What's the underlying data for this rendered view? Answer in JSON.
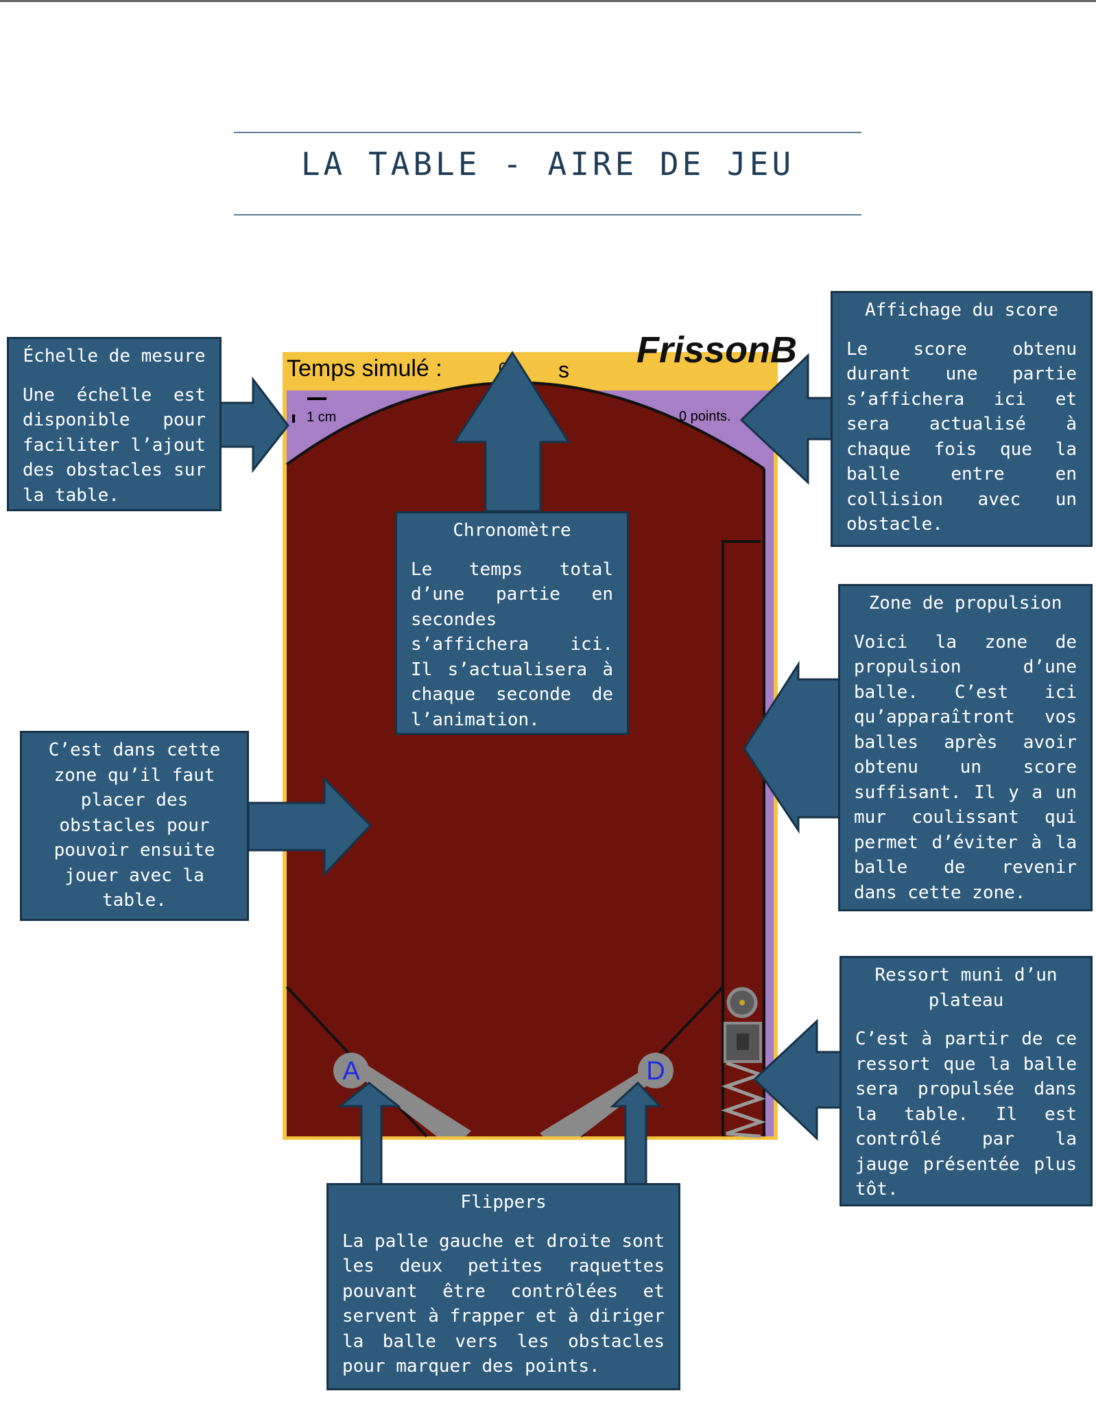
{
  "title": "LA TABLE - AIRE DE JEU",
  "game": {
    "time_label": "Temps simulé :",
    "time_value": "0.0",
    "time_unit": "s",
    "logo_text": "FrissonB",
    "scale_label": "1 cm",
    "score_label": "0 points.",
    "flipper_left_key": "A",
    "flipper_right_key": "D"
  },
  "annotations": {
    "scale": {
      "title": "Échelle de mesure",
      "body": "Une échelle est disponible pour faciliter l’ajout des obstacles sur la table."
    },
    "chrono": {
      "title": "Chronomètre",
      "body": "Le temps total d’une partie en secondes s’affichera ici. Il s’actualisera à chaque seconde de l’animation."
    },
    "score": {
      "title": "Affichage du score",
      "body": "Le score obtenu durant une partie s’affichera ici et sera actualisé à chaque fois que la balle entre en collision avec un obstacle."
    },
    "propulsion": {
      "title": "Zone de propulsion",
      "body": "Voici la zone de propulsion d’une balle. C’est ici qu’apparaîtront vos balles après avoir obtenu un score suffisant. Il y a un mur coulissant qui permet d’éviter à la balle de revenir dans cette zone."
    },
    "play_area": {
      "body": "C’est dans cette zone qu’il faut placer des obstacles pour pouvoir ensuite jouer avec la table."
    },
    "spring": {
      "title": "Ressort muni d’un plateau",
      "body": "C’est à partir de ce ressort que la balle sera propulsée dans la table. Il est contrôlé par la jauge présentée plus tôt."
    },
    "flippers": {
      "title": "Flippers",
      "body": "La palle gauche et droite sont les deux petites raquettes pouvant être contrôlées et servent à frapper et à diriger la balle vers les obstacles pour marquer des points."
    }
  },
  "colors": {
    "box_fill": "#2e5a7c",
    "table_red": "#6e130c",
    "header_yellow": "#f5c542",
    "border_purple": "#a67fc6"
  }
}
